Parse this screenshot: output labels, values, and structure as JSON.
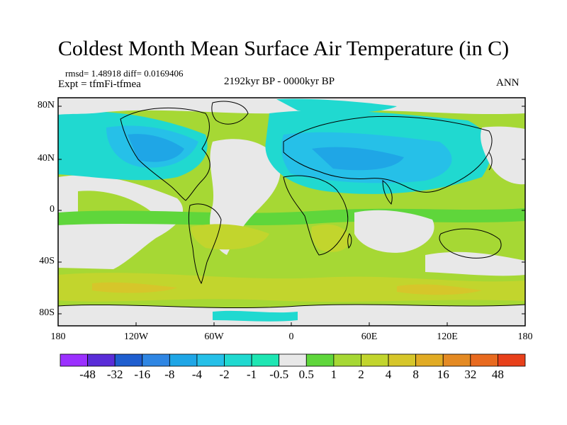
{
  "title": "Coldest Month Mean Surface Air Temperature (in C)",
  "stats": "rmsd= 1.48918 diff= 0.0169406",
  "experiment": "Expt = tfmFi-tfmea",
  "period": "2192kyr BP - 0000kyr BP",
  "season": "ANN",
  "lat_ticks": [
    "80N",
    "40N",
    "0",
    "40S",
    "80S"
  ],
  "lon_ticks": [
    "180",
    "120W",
    "60W",
    "0",
    "60E",
    "120E",
    "180"
  ],
  "colorbar": {
    "colors": [
      "#9b30ff",
      "#5a2dd8",
      "#1f5ecf",
      "#2f86e3",
      "#1fa6e6",
      "#26c0e8",
      "#20d9d0",
      "#1ee6b3",
      "#e8e8e8",
      "#5fd63b",
      "#a6d834",
      "#c2d52d",
      "#d6c62a",
      "#e1ab24",
      "#e48a23",
      "#e86a1f",
      "#e8401a"
    ],
    "labels": [
      "-48",
      "-32",
      "-16",
      "-8",
      "-4",
      "-2",
      "-1",
      "-0.5",
      "0.5",
      "1",
      "2",
      "4",
      "8",
      "16",
      "32",
      "48"
    ]
  },
  "field_colors": {
    "neutral": "#e8e8e8",
    "cool_light": "#20d9d0",
    "cool": "#26c0e8",
    "cold": "#1fa6e6",
    "warm_light": "#5fd63b",
    "warm": "#a6d834",
    "warmer": "#c2d52d",
    "hot": "#d6c62a"
  }
}
